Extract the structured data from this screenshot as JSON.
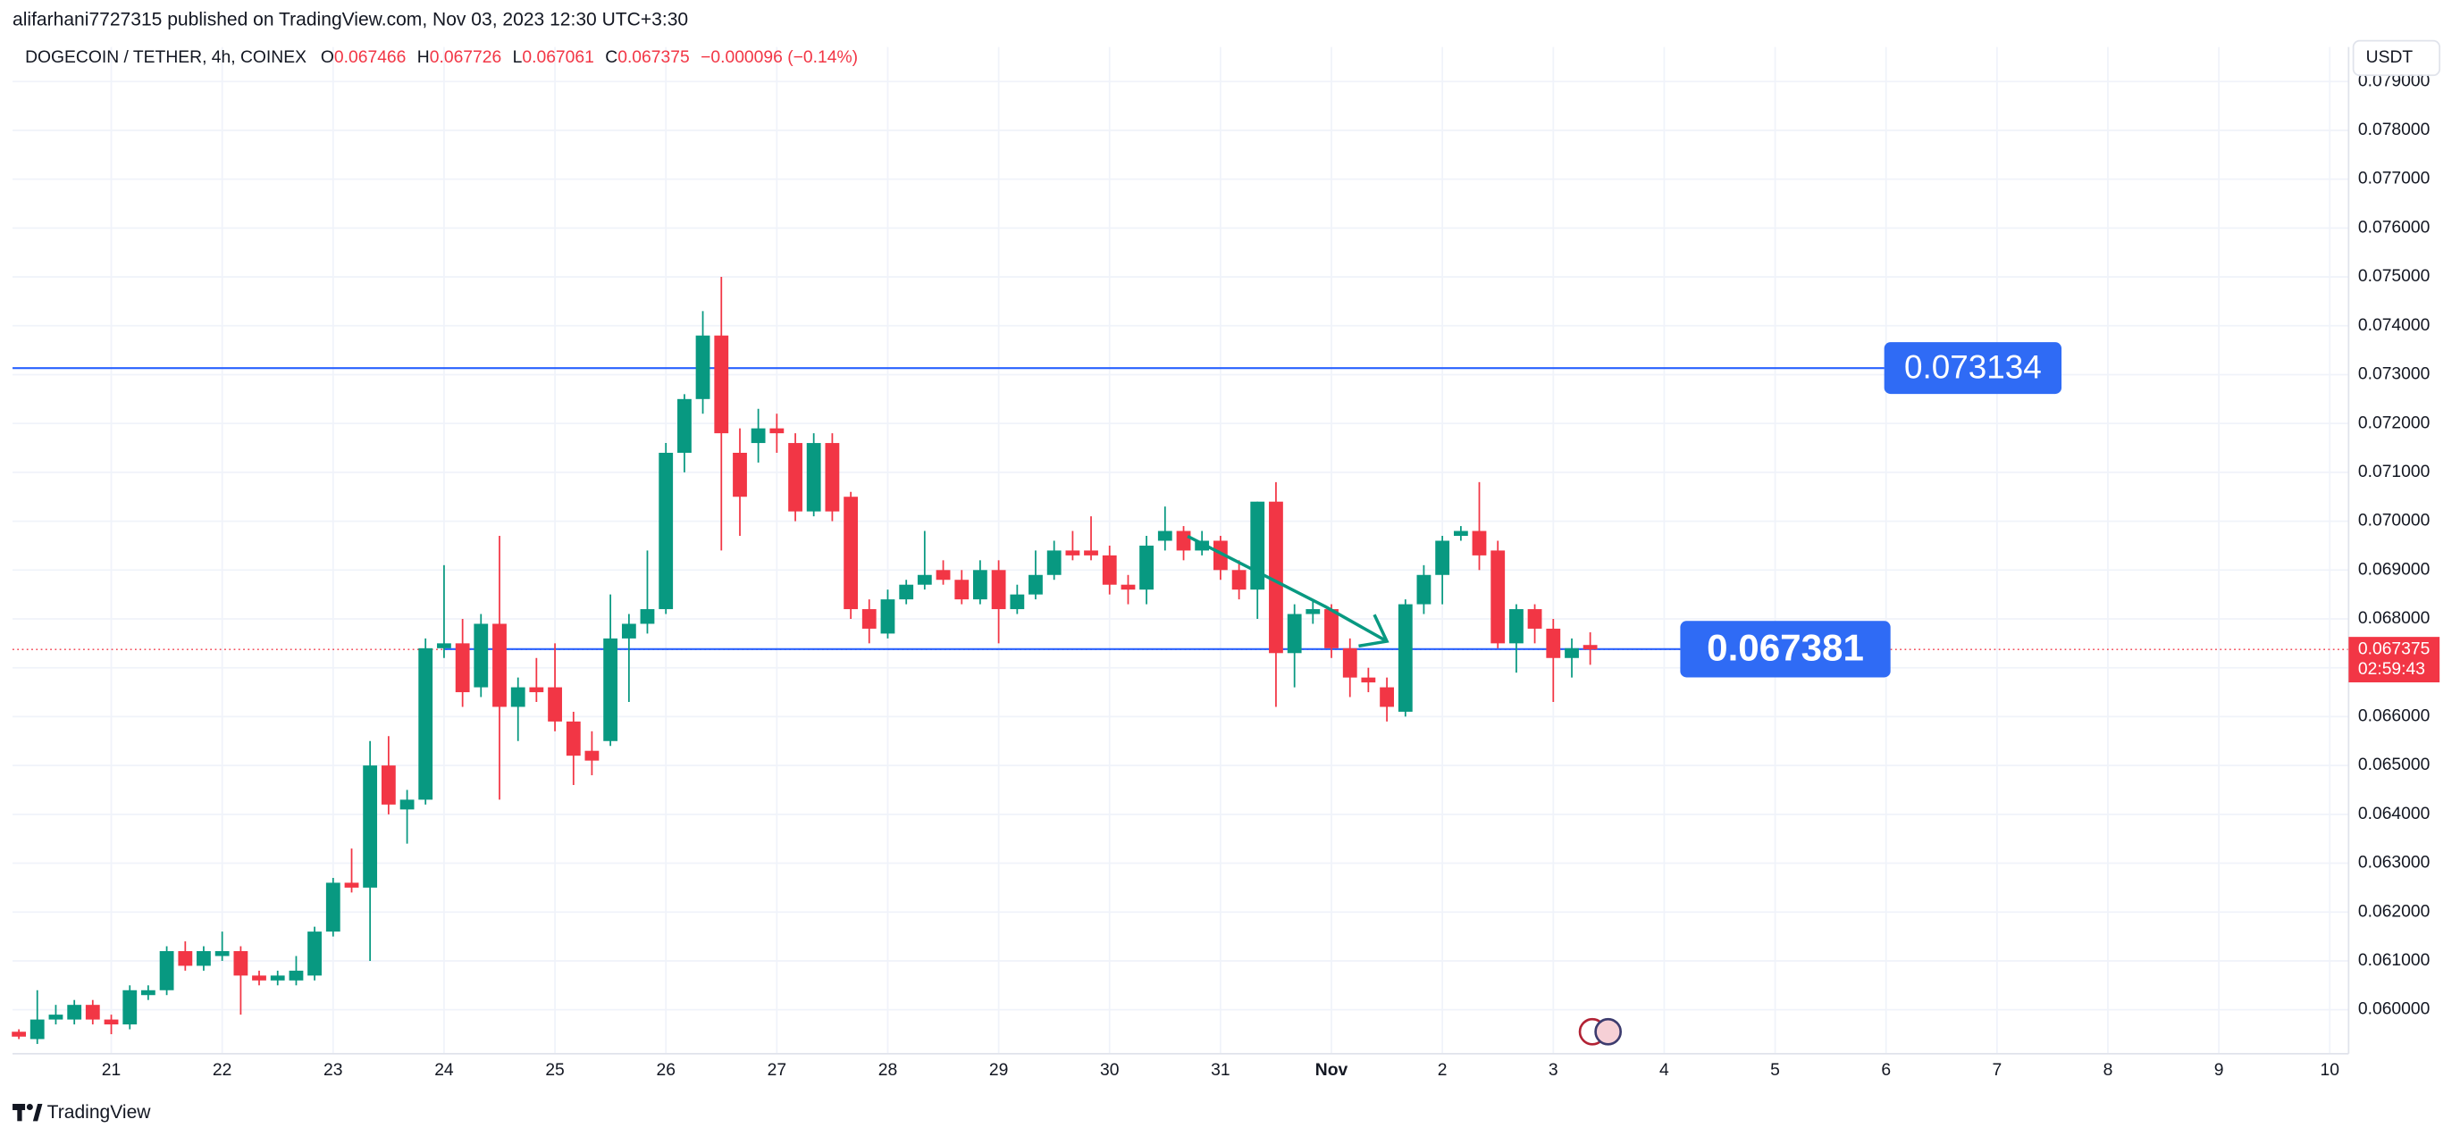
{
  "chart_data": {
    "type": "candlestick",
    "publisher": "alifarhani7727315 published on TradingView.com, Nov 03, 2023 12:30 UTC+3:30",
    "title": "DOGECOIN / TETHER, 4h, COINEX",
    "legend": {
      "open_label": "O",
      "open": "0.067466",
      "high_label": "H",
      "high": "0.067726",
      "low_label": "L",
      "low": "0.067061",
      "close_label": "C",
      "close": "0.067375",
      "change": "−0.000096 (−0.14%)"
    },
    "currency": "USDT",
    "brand": "TradingView",
    "up_color": "#089981",
    "down_color": "#f23645",
    "grid": true,
    "xlim": [
      20.11,
      41.17
    ],
    "ylim": [
      0.059101,
      0.079705
    ],
    "xticks": [
      21,
      22,
      23,
      24,
      25,
      26,
      27,
      28,
      29,
      30,
      31,
      {
        "value": 32,
        "label": "Nov"
      },
      {
        "value": 33,
        "label": "2"
      },
      {
        "value": 34,
        "label": "3"
      },
      {
        "value": 35,
        "label": "4"
      },
      {
        "value": 36,
        "label": "5"
      },
      {
        "value": 37,
        "label": "6"
      },
      {
        "value": 38,
        "label": "7"
      },
      {
        "value": 39,
        "label": "8"
      },
      {
        "value": 40,
        "label": "9"
      },
      {
        "value": 41,
        "label": "10"
      }
    ],
    "yticks": [
      {
        "value": 0.06,
        "label": "0.060000"
      },
      {
        "value": 0.061,
        "label": "0.061000"
      },
      {
        "value": 0.062,
        "label": "0.062000"
      },
      {
        "value": 0.063,
        "label": "0.063000"
      },
      {
        "value": 0.064,
        "label": "0.064000"
      },
      {
        "value": 0.065,
        "label": "0.065000"
      },
      {
        "value": 0.066,
        "label": "0.066000"
      },
      {
        "value": 0.067,
        "label": "0.067000"
      },
      {
        "value": 0.068,
        "label": "0.068000"
      },
      {
        "value": 0.069,
        "label": "0.069000"
      },
      {
        "value": 0.07,
        "label": "0.070000"
      },
      {
        "value": 0.071,
        "label": "0.071000"
      },
      {
        "value": 0.072,
        "label": "0.072000"
      },
      {
        "value": 0.073,
        "label": "0.073000"
      },
      {
        "value": 0.074,
        "label": "0.074000"
      },
      {
        "value": 0.075,
        "label": "0.075000"
      },
      {
        "value": 0.076,
        "label": "0.076000"
      },
      {
        "value": 0.077,
        "label": "0.077000"
      },
      {
        "value": 0.078,
        "label": "0.078000"
      },
      {
        "value": 0.079,
        "label": "0.079000"
      }
    ],
    "levels": [
      {
        "value": 0.073134,
        "color": "#2962ff"
      },
      {
        "value": 0.067381,
        "color": "#2962ff"
      }
    ],
    "last_price": {
      "value": 0.067375,
      "label": "0.067375",
      "countdown": "02:59:43"
    },
    "x": [
      20.167,
      20.333,
      20.5,
      20.667,
      20.833,
      21,
      21.167,
      21.333,
      21.5,
      21.667,
      21.833,
      22,
      22.167,
      22.333,
      22.5,
      22.667,
      22.833,
      23,
      23.167,
      23.333,
      23.5,
      23.667,
      23.833,
      24,
      24.167,
      24.333,
      24.5,
      24.667,
      24.833,
      25,
      25.167,
      25.333,
      25.5,
      25.667,
      25.833,
      26,
      26.167,
      26.333,
      26.5,
      26.667,
      26.833,
      27,
      27.167,
      27.333,
      27.5,
      27.667,
      27.833,
      28,
      28.167,
      28.333,
      28.5,
      28.667,
      28.833,
      29,
      29.167,
      29.333,
      29.5,
      29.667,
      29.833,
      30,
      30.167,
      30.333,
      30.5,
      30.667,
      30.833,
      31,
      31.167,
      31.333,
      31.5,
      31.667,
      31.833,
      32,
      32.167,
      32.333,
      32.5,
      32.667,
      32.833,
      33,
      33.167,
      33.333,
      33.5,
      33.667,
      33.833,
      34,
      34.167,
      34.333
    ],
    "open": [
      0.05955,
      0.0594,
      0.0598,
      0.0598,
      0.0601,
      0.0598,
      0.0597,
      0.0603,
      0.0604,
      0.0612,
      0.0609,
      0.0611,
      0.0612,
      0.0607,
      0.0606,
      0.0606,
      0.0607,
      0.0616,
      0.0626,
      0.0625,
      0.065,
      0.0641,
      0.0643,
      0.0674,
      0.0675,
      0.0666,
      0.0679,
      0.0662,
      0.0666,
      0.0666,
      0.0659,
      0.0653,
      0.0655,
      0.0676,
      0.0679,
      0.0682,
      0.0714,
      0.0725,
      0.0738,
      0.0714,
      0.0716,
      0.0719,
      0.0716,
      0.0702,
      0.0716,
      0.0705,
      0.0682,
      0.0677,
      0.0684,
      0.0687,
      0.069,
      0.0688,
      0.0684,
      0.069,
      0.0682,
      0.0685,
      0.0689,
      0.0694,
      0.0694,
      0.0693,
      0.0687,
      0.0686,
      0.0696,
      0.0698,
      0.0694,
      0.0696,
      0.069,
      0.0686,
      0.0704,
      0.0673,
      0.0681,
      0.0682,
      0.0674,
      0.0668,
      0.0666,
      0.0661,
      0.0683,
      0.0689,
      0.0697,
      0.0698,
      0.0694,
      0.0675,
      0.0682,
      0.0678,
      0.0672,
      0.067466
    ],
    "high": [
      0.0596,
      0.0604,
      0.0601,
      0.0602,
      0.0602,
      0.0599,
      0.0605,
      0.0605,
      0.0613,
      0.0614,
      0.0613,
      0.0616,
      0.0613,
      0.0608,
      0.0608,
      0.0611,
      0.0617,
      0.0627,
      0.0633,
      0.0655,
      0.0656,
      0.0645,
      0.0676,
      0.0691,
      0.068,
      0.0681,
      0.0697,
      0.0668,
      0.0672,
      0.0675,
      0.0661,
      0.0657,
      0.0685,
      0.0681,
      0.0694,
      0.0716,
      0.0726,
      0.0743,
      0.075,
      0.0719,
      0.0723,
      0.0722,
      0.0718,
      0.0718,
      0.0718,
      0.0706,
      0.0684,
      0.0686,
      0.0688,
      0.0698,
      0.0692,
      0.069,
      0.0692,
      0.0692,
      0.0687,
      0.0694,
      0.0696,
      0.0698,
      0.0701,
      0.0695,
      0.0689,
      0.0697,
      0.0703,
      0.0699,
      0.0698,
      0.0697,
      0.0692,
      0.0704,
      0.0708,
      0.0683,
      0.0684,
      0.0683,
      0.0676,
      0.067,
      0.0668,
      0.0684,
      0.0691,
      0.0697,
      0.0699,
      0.0708,
      0.0696,
      0.0683,
      0.0683,
      0.068,
      0.0676,
      0.067726
    ],
    "low": [
      0.0594,
      0.0593,
      0.0597,
      0.0597,
      0.0597,
      0.0595,
      0.0596,
      0.0602,
      0.0603,
      0.0608,
      0.0608,
      0.061,
      0.0599,
      0.0605,
      0.0605,
      0.0605,
      0.0606,
      0.0615,
      0.0624,
      0.061,
      0.064,
      0.0634,
      0.0642,
      0.0672,
      0.0662,
      0.0664,
      0.0643,
      0.0655,
      0.0663,
      0.0657,
      0.0646,
      0.0648,
      0.0654,
      0.0663,
      0.0677,
      0.0681,
      0.071,
      0.0722,
      0.0694,
      0.0697,
      0.0712,
      0.0714,
      0.07,
      0.0701,
      0.07,
      0.068,
      0.0675,
      0.0676,
      0.0683,
      0.0686,
      0.0687,
      0.0683,
      0.0683,
      0.0675,
      0.0681,
      0.0684,
      0.0688,
      0.0692,
      0.0692,
      0.0685,
      0.0683,
      0.0683,
      0.0694,
      0.0692,
      0.0693,
      0.0688,
      0.0684,
      0.068,
      0.0662,
      0.0666,
      0.0679,
      0.0672,
      0.0664,
      0.0665,
      0.0659,
      0.066,
      0.0681,
      0.0683,
      0.0696,
      0.069,
      0.0674,
      0.0669,
      0.0675,
      0.0663,
      0.0668,
      0.067061
    ],
    "close": [
      0.05945,
      0.0598,
      0.0599,
      0.0601,
      0.0598,
      0.0597,
      0.0604,
      0.0604,
      0.0612,
      0.0609,
      0.0612,
      0.0612,
      0.0607,
      0.0606,
      0.0607,
      0.0608,
      0.0616,
      0.0626,
      0.0625,
      0.065,
      0.0642,
      0.0643,
      0.0674,
      0.0675,
      0.0665,
      0.0679,
      0.0662,
      0.0666,
      0.0665,
      0.0659,
      0.0652,
      0.0651,
      0.0676,
      0.0679,
      0.0682,
      0.0714,
      0.0725,
      0.0738,
      0.0718,
      0.0705,
      0.0719,
      0.0718,
      0.0702,
      0.0716,
      0.0702,
      0.0682,
      0.0678,
      0.0684,
      0.0687,
      0.0689,
      0.0688,
      0.0684,
      0.069,
      0.0682,
      0.0685,
      0.0689,
      0.0694,
      0.0693,
      0.0693,
      0.0687,
      0.0686,
      0.0695,
      0.0698,
      0.0694,
      0.0696,
      0.069,
      0.0686,
      0.0704,
      0.0673,
      0.0681,
      0.0682,
      0.0674,
      0.0668,
      0.0667,
      0.0662,
      0.0683,
      0.0689,
      0.0696,
      0.0698,
      0.0693,
      0.0675,
      0.0682,
      0.0678,
      0.0672,
      0.0674,
      0.067375
    ]
  }
}
